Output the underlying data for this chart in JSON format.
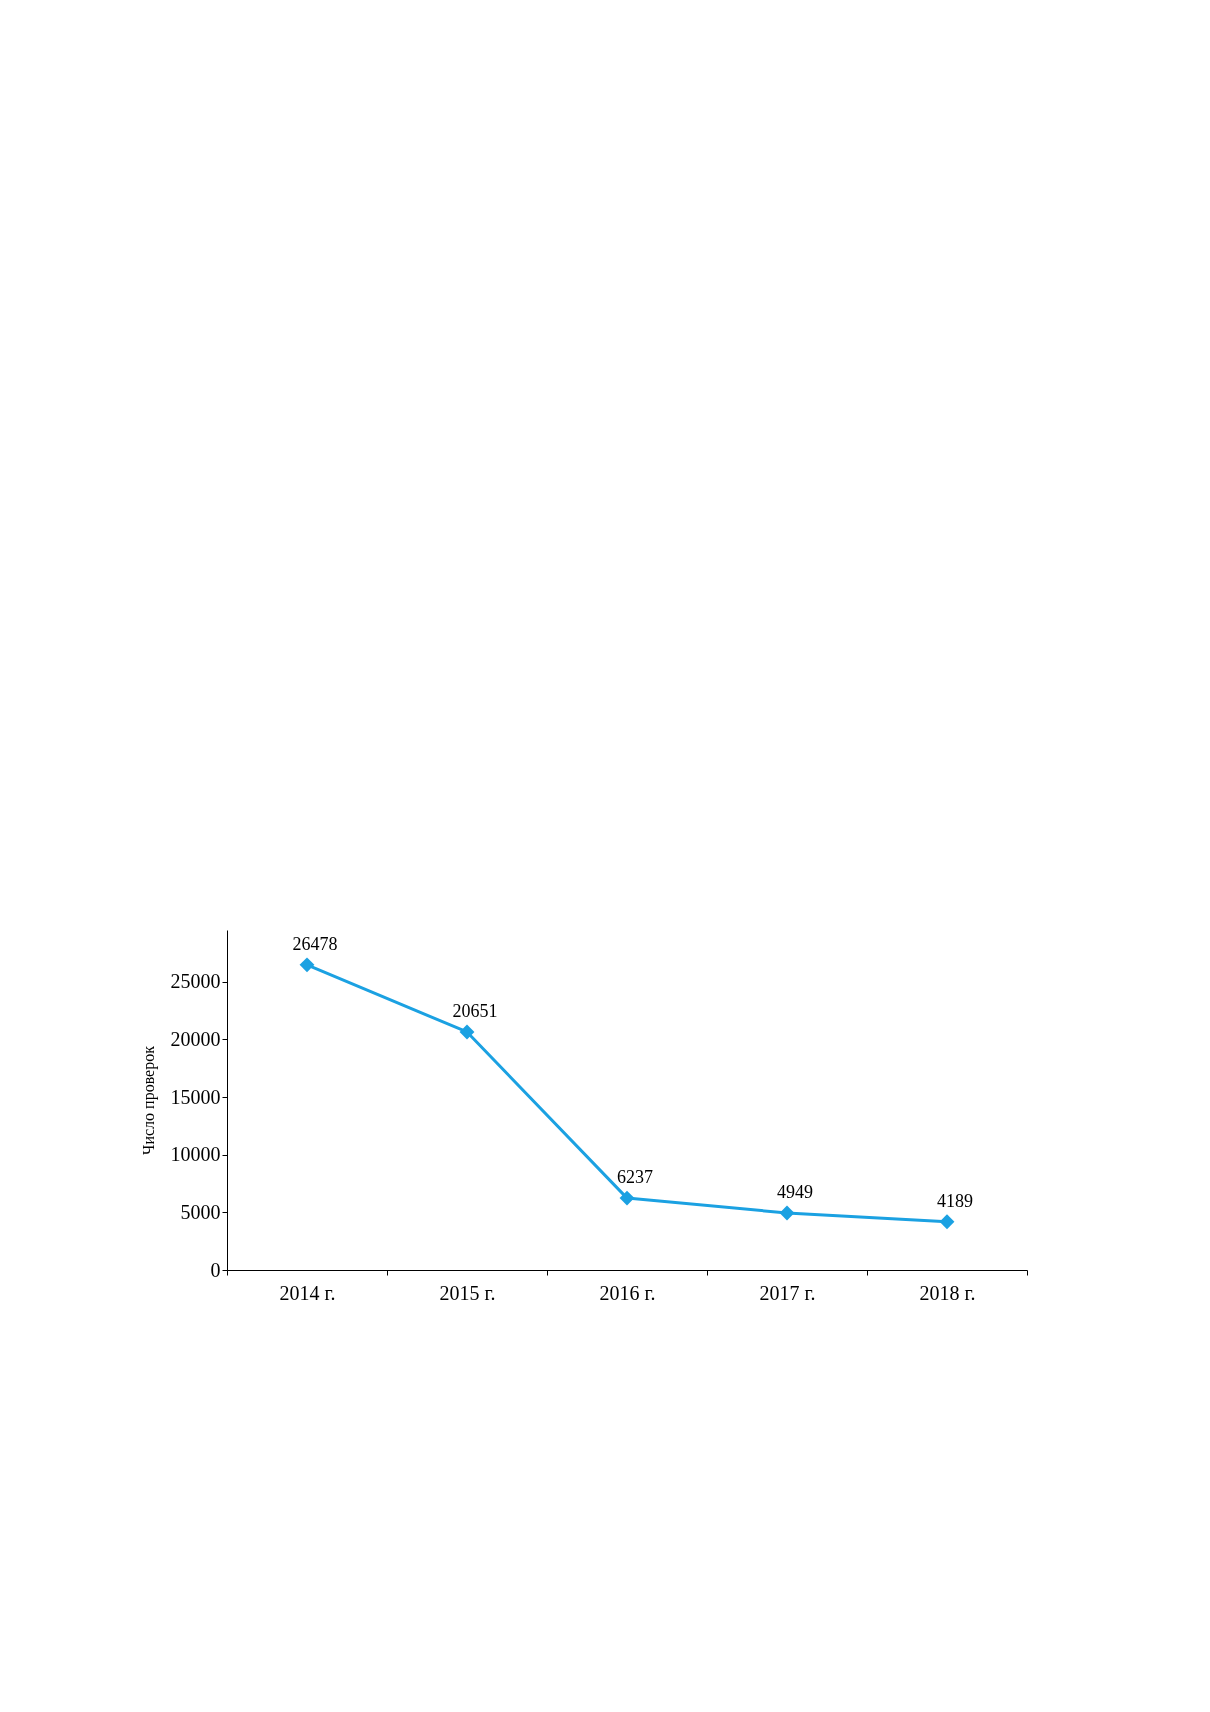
{
  "chart_data": {
    "type": "line",
    "ylabel": "Число проверок",
    "categories": [
      "2014 г.",
      "2015 г.",
      "2016 г.",
      "2017 г.",
      "2018 г."
    ],
    "series": [
      {
        "color": "#1ba1e2",
        "values": [
          26478,
          20651,
          6237,
          4949,
          4189
        ]
      }
    ],
    "ylim": [
      0,
      29500
    ],
    "yticks": [
      0,
      5000,
      10000,
      15000,
      20000,
      25000
    ],
    "marker": "diamond",
    "line_style": "solid",
    "grid": false,
    "legend": false,
    "data_labels": true
  }
}
